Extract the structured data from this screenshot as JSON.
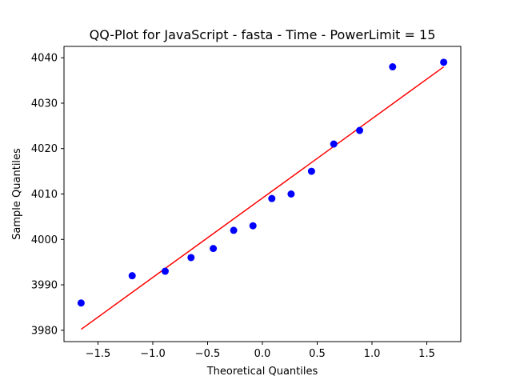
{
  "chart_data": {
    "type": "scatter",
    "title": "QQ-Plot for JavaScript - fasta - Time - PowerLimit = 15",
    "xlabel": "Theoretical Quantiles",
    "ylabel": "Sample Quantiles",
    "xlim": [
      -1.81,
      1.81
    ],
    "ylim": [
      3977.5,
      4042.5
    ],
    "xticks": [
      -1.5,
      -1.0,
      -0.5,
      0.0,
      0.5,
      1.0,
      1.5
    ],
    "xtick_labels": [
      "−1.5",
      "−1.0",
      "−0.5",
      "0.0",
      "0.5",
      "1.0",
      "1.5"
    ],
    "yticks": [
      3980,
      3990,
      4000,
      4010,
      4020,
      4030,
      4040
    ],
    "ytick_labels": [
      "3980",
      "3990",
      "4000",
      "4010",
      "4020",
      "4030",
      "4040"
    ],
    "grid": false,
    "series": [
      {
        "kind": "points",
        "color": "#0000ff",
        "x": [
          -1.654,
          -1.188,
          -0.887,
          -0.651,
          -0.448,
          -0.262,
          -0.086,
          0.086,
          0.262,
          0.448,
          0.651,
          0.887,
          1.188,
          1.654
        ],
        "y": [
          3986,
          3992,
          3993,
          3996,
          3998,
          4002,
          4003,
          4009,
          4010,
          4015,
          4021,
          4024,
          4038,
          4039
        ]
      },
      {
        "kind": "line",
        "color": "#ff0000",
        "x": [
          -1.654,
          1.654
        ],
        "y": [
          3980.2,
          4038.0
        ]
      }
    ]
  }
}
